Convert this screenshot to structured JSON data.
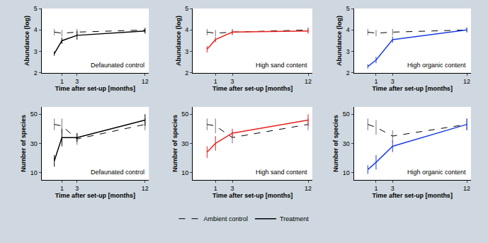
{
  "chart_data": [
    {
      "type": "line",
      "annotation": "Defaunated control",
      "x_label": "Time after set-up [months]",
      "y_label": "Abundance (log)",
      "x": [
        0,
        1,
        3,
        12
      ],
      "xlim": [
        -1.7,
        12.5
      ],
      "xticks": [
        1,
        3,
        12
      ],
      "ylim": [
        2,
        5
      ],
      "yticks": [
        2,
        3,
        4,
        5
      ],
      "series": [
        {
          "name": "Ambient control",
          "color": "#000000",
          "line_style": "dashed",
          "values": [
            3.9,
            3.85,
            3.9,
            4.0
          ],
          "errors": [
            0.15,
            0.15,
            0.15,
            0.12
          ]
        },
        {
          "name": "Treatment",
          "color": "#000000",
          "line_style": "solid",
          "values": [
            2.9,
            3.5,
            3.75,
            3.95
          ],
          "errors": [
            0.1,
            0.15,
            0.2,
            0.12
          ]
        }
      ]
    },
    {
      "type": "line",
      "annotation": "High sand content",
      "x_label": "Time after set-up [months]",
      "y_label": "Abundance (log)",
      "x": [
        0,
        1,
        3,
        12
      ],
      "xlim": [
        -1.7,
        12.5
      ],
      "xticks": [
        1,
        3,
        12
      ],
      "ylim": [
        2,
        5
      ],
      "yticks": [
        2,
        3,
        4,
        5
      ],
      "series": [
        {
          "name": "Ambient control",
          "color": "#000000",
          "line_style": "dashed",
          "values": [
            3.9,
            3.85,
            3.9,
            4.0
          ],
          "errors": [
            0.15,
            0.15,
            0.15,
            0.12
          ]
        },
        {
          "name": "Treatment",
          "color": "#e8231f",
          "line_style": "solid",
          "values": [
            3.1,
            3.55,
            3.9,
            3.95
          ],
          "errors": [
            0.15,
            0.12,
            0.1,
            0.12
          ]
        }
      ]
    },
    {
      "type": "line",
      "annotation": "High organic content",
      "x_label": "Time after set-up [months]",
      "y_label": "Abundance (log)",
      "x": [
        0,
        1,
        3,
        12
      ],
      "xlim": [
        -1.7,
        12.5
      ],
      "xticks": [
        1,
        3,
        12
      ],
      "ylim": [
        2,
        5
      ],
      "yticks": [
        2,
        3,
        4,
        5
      ],
      "series": [
        {
          "name": "Ambient control",
          "color": "#000000",
          "line_style": "dashed",
          "values": [
            3.9,
            3.85,
            3.9,
            4.0
          ],
          "errors": [
            0.15,
            0.15,
            0.15,
            0.12
          ]
        },
        {
          "name": "Treatment",
          "color": "#1f3fe0",
          "line_style": "solid",
          "values": [
            2.3,
            2.6,
            3.55,
            4.0
          ],
          "errors": [
            0.1,
            0.15,
            0.15,
            0.1
          ]
        }
      ]
    },
    {
      "type": "line",
      "annotation": "Defaunated control",
      "x_label": "Time after set-up [months]",
      "y_label": "Number of species",
      "x": [
        0,
        1,
        3,
        12
      ],
      "xlim": [
        -1.7,
        12.5
      ],
      "xticks": [
        1,
        3,
        12
      ],
      "ylim": [
        5,
        55
      ],
      "yticks": [
        10,
        30,
        50
      ],
      "series": [
        {
          "name": "Ambient control",
          "color": "#000000",
          "line_style": "dashed",
          "values": [
            43,
            42,
            33,
            43
          ],
          "errors": [
            4,
            5,
            4,
            4
          ]
        },
        {
          "name": "Treatment",
          "color": "#000000",
          "line_style": "solid",
          "values": [
            18,
            34,
            34,
            46
          ],
          "errors": [
            4,
            6,
            3,
            4
          ]
        }
      ]
    },
    {
      "type": "line",
      "annotation": "High sand content",
      "x_label": "Time after set-up [months]",
      "y_label": "Number of species",
      "x": [
        0,
        1,
        3,
        12
      ],
      "xlim": [
        -1.7,
        12.5
      ],
      "xticks": [
        1,
        3,
        12
      ],
      "ylim": [
        5,
        55
      ],
      "yticks": [
        10,
        30,
        50
      ],
      "series": [
        {
          "name": "Ambient control",
          "color": "#000000",
          "line_style": "dashed",
          "values": [
            43,
            42,
            34,
            43
          ],
          "errors": [
            4,
            5,
            4,
            4
          ]
        },
        {
          "name": "Treatment",
          "color": "#e8231f",
          "line_style": "solid",
          "values": [
            24,
            30,
            37,
            46
          ],
          "errors": [
            4,
            5,
            3,
            4
          ]
        }
      ]
    },
    {
      "type": "line",
      "annotation": "High organic content",
      "x_label": "Time after set-up [months]",
      "y_label": "Number of species",
      "x": [
        0,
        1,
        3,
        12
      ],
      "xlim": [
        -1.7,
        12.5
      ],
      "xticks": [
        1,
        3,
        12
      ],
      "ylim": [
        5,
        55
      ],
      "yticks": [
        10,
        30,
        50
      ],
      "series": [
        {
          "name": "Ambient control",
          "color": "#000000",
          "line_style": "dashed",
          "values": [
            43,
            41,
            35,
            43
          ],
          "errors": [
            4,
            5,
            4,
            4
          ]
        },
        {
          "name": "Treatment",
          "color": "#1f3fe0",
          "line_style": "solid",
          "values": [
            12,
            17,
            28,
            43
          ],
          "errors": [
            3,
            5,
            4,
            4
          ]
        }
      ]
    }
  ]
}
